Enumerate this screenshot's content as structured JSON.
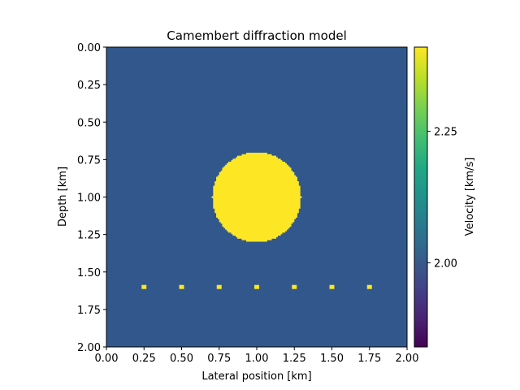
{
  "chart_data": {
    "type": "heatmap",
    "title": "Camembert diffraction model",
    "xlabel": "Lateral position [km]",
    "ylabel": "Depth [km]",
    "xlim": [
      0.0,
      2.0
    ],
    "ylim": [
      2.0,
      0.0
    ],
    "x_ticks": [
      "0.00",
      "0.25",
      "0.50",
      "0.75",
      "1.00",
      "1.25",
      "1.50",
      "1.75",
      "2.00"
    ],
    "y_ticks": [
      "0.00",
      "0.25",
      "0.50",
      "0.75",
      "1.00",
      "1.25",
      "1.50",
      "1.75",
      "2.00"
    ],
    "background_velocity": 2.0,
    "anomaly_velocity": 2.4,
    "colormap": "viridis",
    "background_color": "#31578c",
    "anomaly_color": "#fde725",
    "camembert": {
      "center_x": 1.0,
      "center_z": 1.0,
      "radius": 0.3,
      "velocity": 2.4
    },
    "diffractors": [
      {
        "x": 0.25,
        "z": 1.6,
        "velocity": 2.4
      },
      {
        "x": 0.5,
        "z": 1.6,
        "velocity": 2.4
      },
      {
        "x": 0.75,
        "z": 1.6,
        "velocity": 2.4
      },
      {
        "x": 1.0,
        "z": 1.6,
        "velocity": 2.4
      },
      {
        "x": 1.25,
        "z": 1.6,
        "velocity": 2.4
      },
      {
        "x": 1.5,
        "z": 1.6,
        "velocity": 2.4
      },
      {
        "x": 1.75,
        "z": 1.6,
        "velocity": 2.4
      }
    ],
    "colorbar": {
      "label": "Velocity [km/s]",
      "vmin": 1.84,
      "vmax": 2.41,
      "ticks": [
        {
          "value": 2.25,
          "label": "2.25"
        },
        {
          "value": 2.0,
          "label": "2.00"
        }
      ]
    },
    "grid": false
  }
}
